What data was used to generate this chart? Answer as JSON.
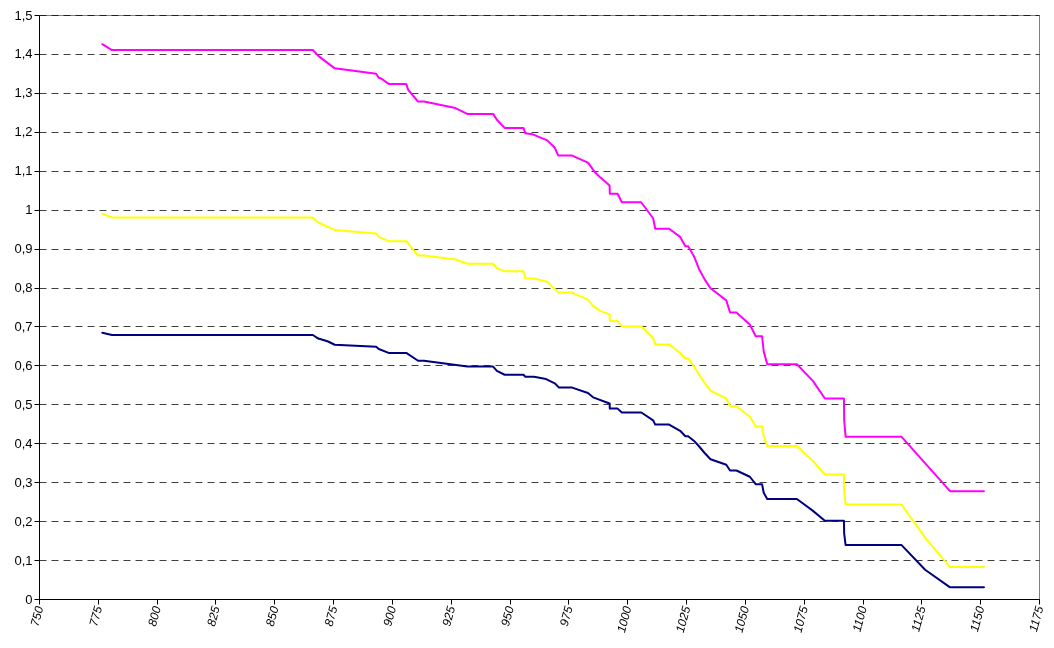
{
  "chart_data": {
    "type": "line",
    "grid": "y",
    "xlim": [
      750,
      1175
    ],
    "xticks": [
      750,
      775,
      800,
      825,
      850,
      875,
      900,
      925,
      950,
      975,
      1000,
      1025,
      1050,
      1075,
      1100,
      1125,
      1150,
      1175
    ],
    "ylim": [
      0,
      1.5
    ],
    "yticks": [
      0,
      {
        "value": 0.1,
        "label": "0,1"
      },
      {
        "value": 0.2,
        "label": "0,2"
      },
      {
        "value": 0.3,
        "label": "0,3"
      },
      {
        "value": 0.4,
        "label": "0,4"
      },
      {
        "value": 0.5,
        "label": "0,5"
      },
      {
        "value": 0.6,
        "label": "0,6"
      },
      {
        "value": 0.7,
        "label": "0,7"
      },
      {
        "value": 0.8,
        "label": "0,8"
      },
      {
        "value": 0.9,
        "label": "0,9"
      },
      1,
      {
        "value": 1.1,
        "label": "1,1"
      },
      {
        "value": 1.2,
        "label": "1,2"
      },
      {
        "value": 1.3,
        "label": "1,3"
      },
      {
        "value": 1.4,
        "label": "1,4"
      },
      {
        "value": 1.5,
        "label": "1,5"
      }
    ],
    "series": [
      {
        "color": "#ff00ff",
        "x": [
          776.9,
          781,
          866.4,
          868.7,
          875.7,
          893.3,
          894.4,
          895.4,
          898.6,
          906.1,
          906.9,
          911,
          913.6,
          927,
          932,
          943,
          944.6,
          947.9,
          955.9,
          956.7,
          959.6,
          966,
          969.2,
          970.7,
          976.6,
          983.3,
          986.3,
          988.5,
          992.5,
          992.6,
          995.9,
          997.7,
          1005.9,
          1011,
          1011.9,
          1017.8,
          1022.5,
          1024.7,
          1025.9,
          1028.4,
          1030.4,
          1032.9,
          1035.4,
          1042.1,
          1043.7,
          1046.4,
          1052.1,
          1054.6,
          1057.3,
          1058,
          1059.5,
          1072.1,
          1078.8,
          1084,
          1092.1,
          1092.2,
          1092.8,
          1116.5,
          1137.2,
          1151.6
        ],
        "values": [
          1.425,
          1.41,
          1.41,
          1.395,
          1.363,
          1.349,
          1.339,
          1.337,
          1.323,
          1.323,
          1.308,
          1.278,
          1.278,
          1.261,
          1.246,
          1.246,
          1.231,
          1.21,
          1.21,
          1.196,
          1.194,
          1.178,
          1.159,
          1.139,
          1.139,
          1.121,
          1.096,
          1.083,
          1.062,
          1.041,
          1.041,
          1.019,
          1.019,
          0.978,
          0.951,
          0.951,
          0.93,
          0.906,
          0.906,
          0.88,
          0.849,
          0.821,
          0.798,
          0.767,
          0.736,
          0.736,
          0.705,
          0.675,
          0.675,
          0.636,
          0.603,
          0.603,
          0.561,
          0.515,
          0.515,
          0.459,
          0.417,
          0.417,
          0.277,
          0.277
        ]
      },
      {
        "color": "#ffff00",
        "x": [
          776.9,
          781,
          866.4,
          868.6,
          875.7,
          893.3,
          894.4,
          898.6,
          906.1,
          911.1,
          913.6,
          927.1,
          932.1,
          943,
          944.6,
          947.9,
          955.9,
          956.7,
          960.4,
          966,
          970.7,
          976.6,
          983.3,
          985.5,
          988.5,
          992.5,
          992.6,
          995.9,
          997.7,
          1006,
          1011,
          1011.9,
          1017.8,
          1022.5,
          1024.7,
          1025.9,
          1028.4,
          1030.4,
          1032.9,
          1035.4,
          1042.1,
          1043.7,
          1046.4,
          1052.1,
          1054.6,
          1057.3,
          1058,
          1059.5,
          1072.1,
          1078.8,
          1084,
          1092.1,
          1092.2,
          1092.8,
          1116.5,
          1126.9,
          1137.2,
          1151.6
        ],
        "values": [
          0.99,
          0.98,
          0.98,
          0.967,
          0.948,
          0.939,
          0.93,
          0.919,
          0.919,
          0.882,
          0.882,
          0.872,
          0.861,
          0.861,
          0.85,
          0.842,
          0.842,
          0.823,
          0.823,
          0.815,
          0.787,
          0.787,
          0.769,
          0.753,
          0.74,
          0.731,
          0.714,
          0.714,
          0.7,
          0.7,
          0.67,
          0.654,
          0.654,
          0.632,
          0.618,
          0.618,
          0.597,
          0.577,
          0.555,
          0.535,
          0.515,
          0.495,
          0.495,
          0.468,
          0.443,
          0.443,
          0.418,
          0.393,
          0.393,
          0.355,
          0.32,
          0.32,
          0.277,
          0.243,
          0.243,
          0.155,
          0.082,
          0.082
        ]
      },
      {
        "color": "#000080",
        "x": [
          776.9,
          781,
          866.4,
          868.7,
          872.6,
          875.7,
          893.3,
          894.4,
          898.6,
          906.1,
          911.1,
          913.6,
          932.1,
          943,
          944.6,
          947.9,
          955.9,
          956.7,
          960.4,
          965.5,
          969.2,
          971,
          976.6,
          983.3,
          985.5,
          992.5,
          992.6,
          995.9,
          997.7,
          1006,
          1011,
          1011.9,
          1017.8,
          1022.5,
          1024.7,
          1025.9,
          1028.4,
          1030.4,
          1032.9,
          1035.4,
          1042.1,
          1043.7,
          1046.4,
          1052.1,
          1054.6,
          1057.3,
          1058,
          1059.5,
          1072.1,
          1078.8,
          1084,
          1092.1,
          1092.2,
          1092.8,
          1116.5,
          1126.6,
          1137.2,
          1151.6
        ],
        "values": [
          0.684,
          0.678,
          0.678,
          0.669,
          0.662,
          0.653,
          0.648,
          0.642,
          0.632,
          0.632,
          0.612,
          0.612,
          0.597,
          0.597,
          0.586,
          0.576,
          0.576,
          0.571,
          0.571,
          0.565,
          0.554,
          0.543,
          0.543,
          0.529,
          0.518,
          0.502,
          0.489,
          0.489,
          0.479,
          0.479,
          0.459,
          0.448,
          0.448,
          0.432,
          0.418,
          0.418,
          0.406,
          0.393,
          0.375,
          0.359,
          0.345,
          0.33,
          0.33,
          0.314,
          0.295,
          0.295,
          0.273,
          0.257,
          0.257,
          0.227,
          0.201,
          0.201,
          0.168,
          0.139,
          0.139,
          0.075,
          0.03,
          0.03
        ]
      }
    ]
  }
}
